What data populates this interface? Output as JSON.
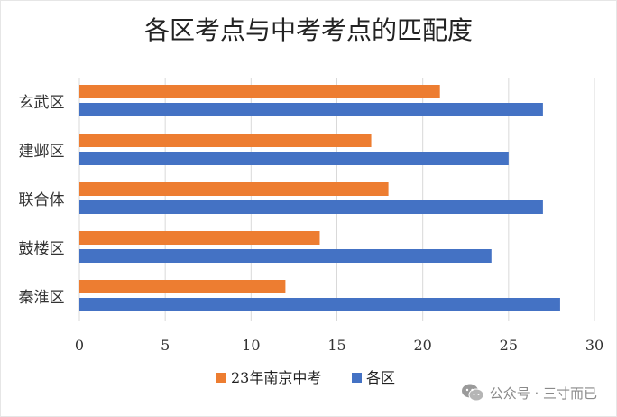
{
  "chart_data": {
    "type": "bar",
    "orientation": "horizontal",
    "title": "各区考点与中考考点的匹配度",
    "categories": [
      "玄武区",
      "建邺区",
      "联合体",
      "鼓楼区",
      "秦淮区"
    ],
    "series": [
      {
        "name": "23年南京中考",
        "color": "#ED7D31",
        "values": [
          21,
          17,
          18,
          14,
          12
        ]
      },
      {
        "name": "各区",
        "color": "#4472C4",
        "values": [
          27,
          25,
          27,
          24,
          28
        ]
      }
    ],
    "xlim": [
      0,
      30
    ],
    "xticks": [
      "0",
      "5",
      "10",
      "15",
      "20",
      "25",
      "30"
    ],
    "grid": true,
    "legend_position": "bottom"
  },
  "watermark": {
    "text": "公众号 · 三寸而已",
    "icon": "wechat-icon"
  }
}
